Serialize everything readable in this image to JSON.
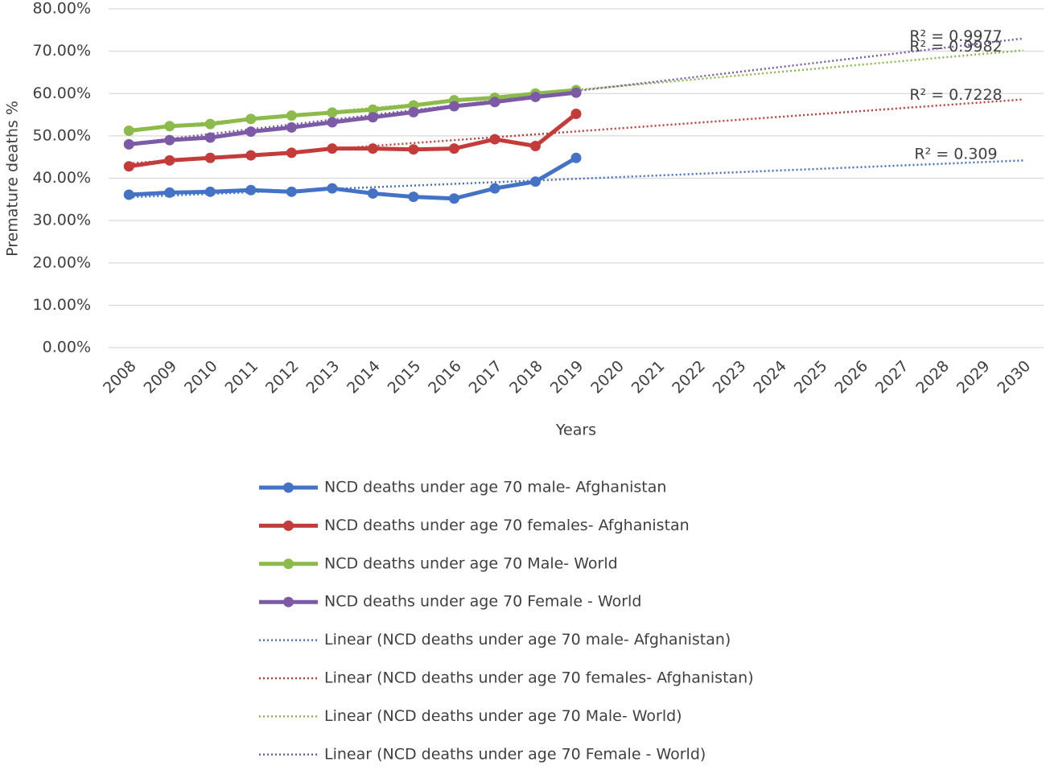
{
  "chart_data": {
    "type": "line",
    "y_axis_label": "Premature deaths %",
    "x_axis_label": "Years",
    "categories": [
      "2008",
      "2009",
      "2010",
      "2011",
      "2012",
      "2013",
      "2014",
      "2015",
      "2016",
      "2017",
      "2018",
      "2019",
      "2020",
      "2021",
      "2022",
      "2023",
      "2024",
      "2025",
      "2026",
      "2027",
      "2028",
      "2029",
      "2030"
    ],
    "ylim": [
      0,
      80
    ],
    "yticks": [
      {
        "value": 0,
        "label": "0.00%"
      },
      {
        "value": 10,
        "label": "10.00%"
      },
      {
        "value": 20,
        "label": "20.00%"
      },
      {
        "value": 30,
        "label": "30.00%"
      },
      {
        "value": 40,
        "label": "40.00%"
      },
      {
        "value": 50,
        "label": "50.00%"
      },
      {
        "value": 60,
        "label": "60.00%"
      },
      {
        "value": 70,
        "label": "70.00%"
      },
      {
        "value": 80,
        "label": "80.00%"
      }
    ],
    "grid": true,
    "series": [
      {
        "name": "NCD deaths under age 70  male- Afghanistan",
        "color": "#4472c4",
        "values": [
          36.1,
          36.6,
          36.8,
          37.2,
          36.8,
          37.6,
          36.4,
          35.6,
          35.2,
          37.6,
          39.2,
          44.8,
          null,
          null,
          null,
          null,
          null,
          null,
          null,
          null,
          null,
          null,
          null
        ]
      },
      {
        "name": "NCD deaths under age 70  females- Afghanistan",
        "color": "#c43c39",
        "values": [
          42.8,
          44.2,
          44.8,
          45.4,
          46.0,
          47.0,
          47.0,
          46.8,
          47.0,
          49.2,
          47.6,
          55.2,
          null,
          null,
          null,
          null,
          null,
          null,
          null,
          null,
          null,
          null,
          null
        ]
      },
      {
        "name": "NCD deaths under age 70  Male- World",
        "color": "#8cbb4b",
        "values": [
          51.2,
          52.3,
          52.8,
          54.0,
          54.8,
          55.5,
          56.2,
          57.2,
          58.4,
          59.0,
          60.0,
          60.8,
          null,
          null,
          null,
          null,
          null,
          null,
          null,
          null,
          null,
          null,
          null
        ]
      },
      {
        "name": "NCD deaths under age 70  Female - World",
        "color": "#7d5aa6",
        "values": [
          48.0,
          49.0,
          49.6,
          51.0,
          52.0,
          53.2,
          54.4,
          55.6,
          57.0,
          58.0,
          59.2,
          60.2,
          null,
          null,
          null,
          null,
          null,
          null,
          null,
          null,
          null,
          null,
          null
        ]
      }
    ],
    "trendlines": [
      {
        "name": "Linear (NCD deaths under age 70  male- Afghanistan)",
        "color": "#4472c4",
        "start": 35.5,
        "end": 44.2,
        "r2_label": "R² = 0.309"
      },
      {
        "name": "Linear (NCD deaths under age 70  females- Afghanistan)",
        "color": "#c43c39",
        "start": 43.5,
        "end": 58.6,
        "r2_label": "R² = 0.7228"
      },
      {
        "name": "Linear (NCD deaths under age 70  Male- World)",
        "color": "#8cbb4b",
        "start": 51.5,
        "end": 70.2,
        "r2_label": "R² = 0.9982"
      },
      {
        "name": "Linear (NCD deaths under age 70  Female - World)",
        "color": "#7d5aa6",
        "start": 48.2,
        "end": 73.0,
        "r2_label": "R² = 0.9977"
      }
    ]
  }
}
